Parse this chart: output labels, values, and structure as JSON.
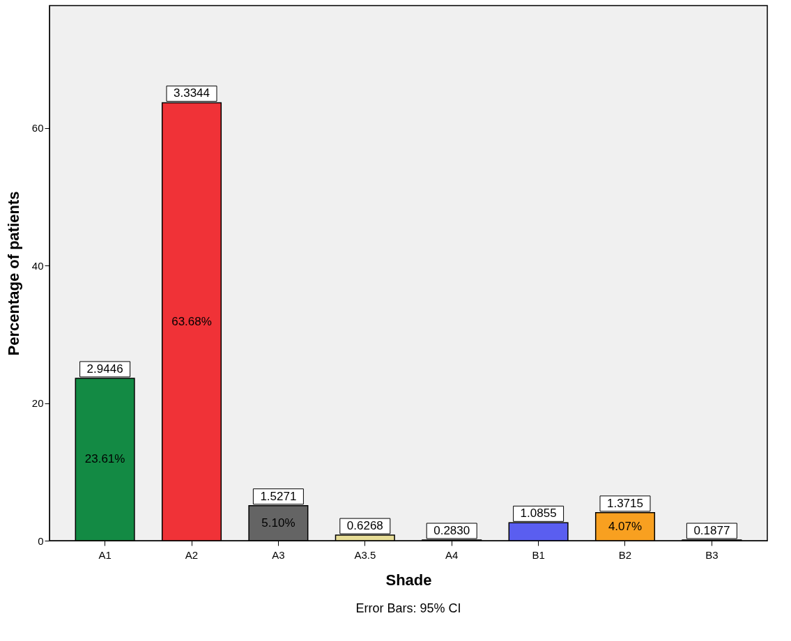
{
  "chart_data": {
    "type": "bar",
    "xlabel": "Shade",
    "ylabel": "Percentage of patients",
    "categories": [
      "A1",
      "A2",
      "A3",
      "A3.5",
      "A4",
      "B1",
      "B2",
      "B3"
    ],
    "values": [
      23.61,
      63.68,
      5.1,
      0.8,
      0.1,
      2.6,
      4.07,
      0.1
    ],
    "colors": [
      "#138a44",
      "#f03237",
      "#646464",
      "#e6dc96",
      "#333333",
      "#5a5ef0",
      "#f8a020",
      "#333333"
    ],
    "value_labels": [
      "23.61%",
      "63.68%",
      "5.10%",
      null,
      null,
      null,
      "4.07%",
      null
    ],
    "ylim": [
      0,
      77.8
    ],
    "yticks": [
      0,
      20,
      40,
      60
    ],
    "grid": false,
    "annotations": [
      {
        "text": "2.9446",
        "x": "A1",
        "y": 23.61
      },
      {
        "text": "3.3344",
        "x": "A2",
        "y": 63.68
      },
      {
        "text": "1.5271",
        "x": "A3",
        "y": 5.1
      },
      {
        "text": "0.6268",
        "x": "A3.5",
        "y": 0.8
      },
      {
        "text": "0.2830",
        "x": "A4",
        "y": 0.1
      },
      {
        "text": "1.0855",
        "x": "B1",
        "y": 2.6
      },
      {
        "text": "1.3715",
        "x": "B2",
        "y": 4.07
      },
      {
        "text": "0.1877",
        "x": "B3",
        "y": 0.1
      },
      "Error Bars: 95% CI"
    ]
  }
}
